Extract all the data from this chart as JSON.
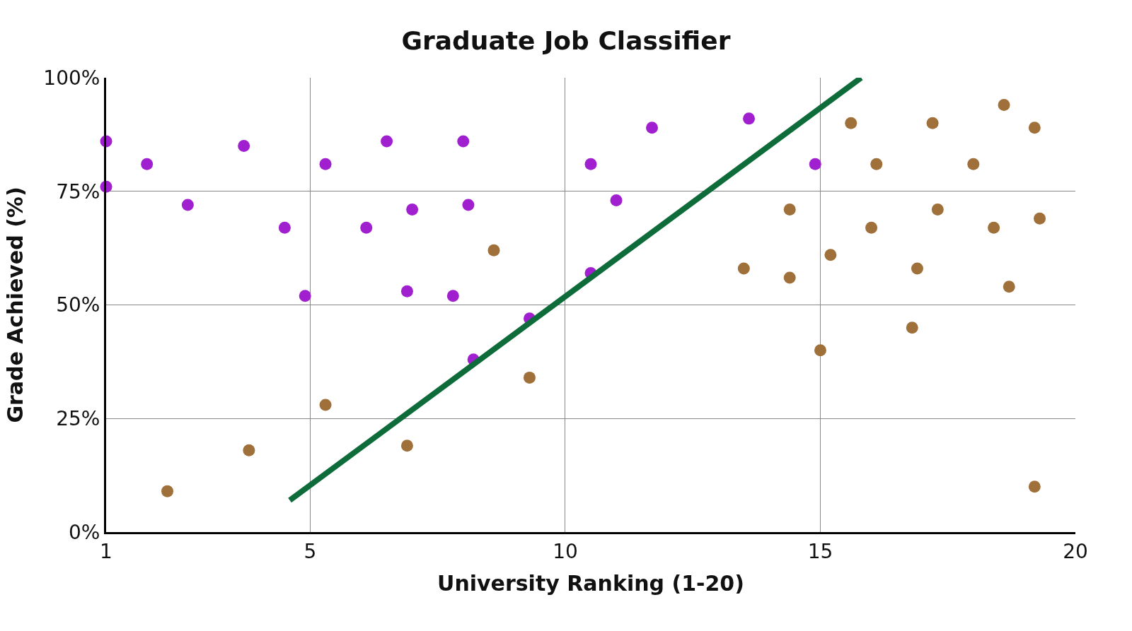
{
  "chart_data": {
    "type": "scatter",
    "title": "Graduate Job Classifier",
    "xlabel": "University Ranking (1-20)",
    "ylabel": "Grade Achieved (%)",
    "xlim": [
      1,
      20
    ],
    "xticks": [
      1,
      5,
      10,
      15,
      20
    ],
    "ylim": [
      0,
      100
    ],
    "yticks": [
      {
        "value": 0,
        "label": "0%"
      },
      {
        "value": 25,
        "label": "25%"
      },
      {
        "value": 50,
        "label": "50%"
      },
      {
        "value": 75,
        "label": "75%"
      },
      {
        "value": 100,
        "label": "100%"
      }
    ],
    "grid": true,
    "marker": "circle",
    "series": [
      {
        "color": "#a020d0",
        "x": [
          1,
          1,
          1.8,
          2.6,
          3.7,
          4.5,
          4.9,
          5.3,
          6.1,
          6.5,
          6.9,
          7,
          7.8,
          8,
          8.1,
          8.2,
          9.3,
          10.5,
          10.5,
          11,
          11.7,
          13.6,
          14.9
        ],
        "values": [
          86,
          76,
          81,
          72,
          85,
          67,
          52,
          81,
          67,
          86,
          53,
          71,
          52,
          86,
          72,
          38,
          47,
          57,
          81,
          73,
          89,
          91,
          81
        ]
      },
      {
        "color": "#a0703a",
        "x": [
          2.2,
          3.8,
          5.3,
          6.9,
          8.6,
          9.3,
          13.5,
          14.4,
          14.4,
          15,
          15.2,
          15.6,
          16,
          16.1,
          16.8,
          16.9,
          17.2,
          17.3,
          18,
          18.4,
          18.6,
          18.7,
          19.2,
          19.2,
          19.3
        ],
        "values": [
          9,
          18,
          28,
          19,
          62,
          34,
          58,
          71,
          56,
          40,
          61,
          90,
          67,
          81,
          45,
          58,
          90,
          71,
          81,
          67,
          94,
          54,
          89,
          10,
          69
        ]
      },
      {
        "type": "line",
        "color": "#0e6b3a",
        "marker": "none",
        "x": [
          4.6,
          15.8
        ],
        "values": [
          7,
          100
        ]
      }
    ]
  }
}
